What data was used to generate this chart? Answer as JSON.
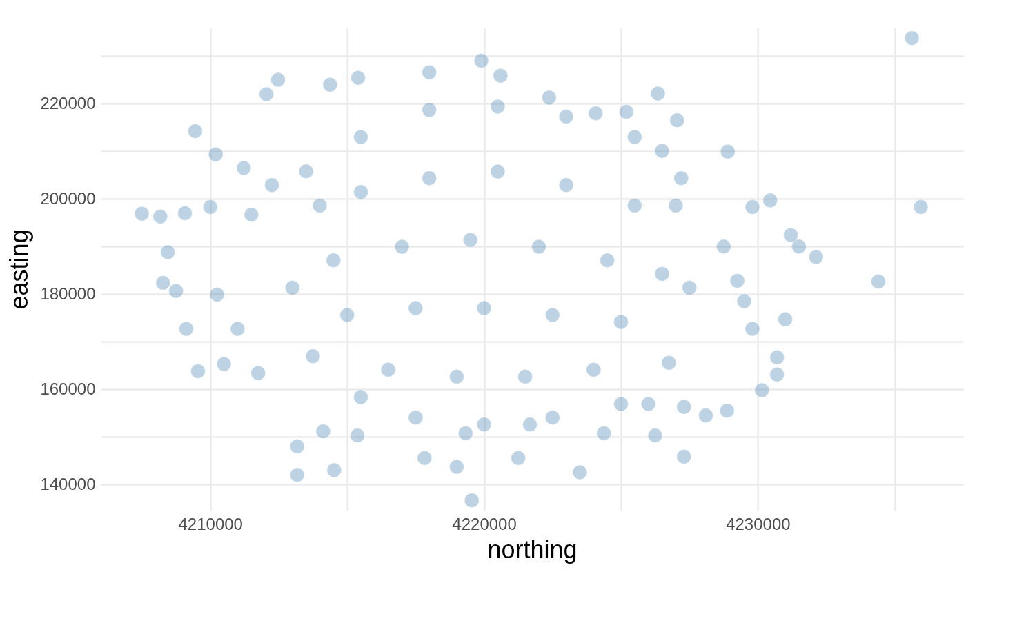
{
  "chart_data": {
    "type": "scatter",
    "xlabel": "northing",
    "ylabel": "easting",
    "grid": true,
    "marker": "circle",
    "xlim": [
      4206000,
      4237500
    ],
    "ylim": [
      134500,
      236000
    ],
    "xticks": [
      4210000,
      {
        "value": 4215000,
        "label": null
      },
      4220000,
      {
        "value": 4225000,
        "label": null
      },
      4230000,
      {
        "value": 4235000,
        "label": null
      }
    ],
    "yticks": [
      140000,
      {
        "value": 150000,
        "label": null
      },
      160000,
      {
        "value": 170000,
        "label": null
      },
      180000,
      {
        "value": 190000,
        "label": null
      },
      200000,
      {
        "value": 210000,
        "label": null
      },
      220000,
      {
        "value": 230000,
        "label": null
      }
    ],
    "series": [
      {
        "color": "#4682b4",
        "x": [
          4235625,
          4235950,
          4234400,
          4207500,
          4208175,
          4208450,
          4208275,
          4209450,
          4209550,
          4210500,
          4213175,
          4214525,
          4213175,
          4219000,
          4219550,
          4219900,
          4221250,
          4223500,
          4217825,
          4231200,
          4232125,
          4231500,
          4230450,
          4230150,
          4230700,
          4230700,
          4231000,
          4228900,
          4228875,
          4228100,
          4227300,
          4227300,
          4226350,
          4227050,
          4225200,
          4224075,
          4222375,
          4220600,
          4218000,
          4215400,
          4214375,
          4212475,
          4212050,
          4211225,
          4210200,
          4209075,
          4210000,
          4215375,
          4214125,
          4219325,
          4221675,
          4224375,
          4226250,
          4226000,
          4229800,
          4229500,
          4229800,
          4229250,
          4228750,
          4227200,
          4226500,
          4210250,
          4208750,
          4209125,
          4211000,
          4211750,
          4211500,
          4213500,
          4212250,
          4213000,
          4214000,
          4215500,
          4218000,
          4220500,
          4223000,
          4225500,
          4227000,
          4227500,
          4226750,
          4225000,
          4222500,
          4220000,
          4217500,
          4215500,
          4213750,
          4215500,
          4218000,
          4220500,
          4223000,
          4225500,
          4214500,
          4217000,
          4219500,
          4222000,
          4224500,
          4226500,
          4215000,
          4217500,
          4220000,
          4222500,
          4225000,
          4216500,
          4219000,
          4221500,
          4224000
        ],
        "values": [
          233800,
          198300,
          182650,
          196900,
          196300,
          188800,
          182350,
          214250,
          163800,
          165300,
          142000,
          143000,
          148000,
          143700,
          136650,
          229050,
          145550,
          142550,
          145550,
          192400,
          187800,
          190000,
          199700,
          159800,
          163100,
          166700,
          174700,
          209950,
          155500,
          154500,
          156300,
          145850,
          222150,
          216550,
          218300,
          218000,
          221300,
          225900,
          226600,
          225450,
          224000,
          225050,
          222000,
          206500,
          209350,
          197000,
          198300,
          150300,
          151150,
          150750,
          152600,
          150750,
          150300,
          156900,
          198300,
          178500,
          172700,
          182800,
          190000,
          204350,
          210100,
          179900,
          180650,
          172700,
          172700,
          163400,
          196700,
          205800,
          202900,
          181350,
          198600,
          213000,
          218700,
          219400,
          217300,
          213000,
          198600,
          181350,
          165550,
          156900,
          154050,
          152600,
          154050,
          158350,
          166950,
          201450,
          204350,
          205750,
          202900,
          198600,
          187100,
          189950,
          191400,
          189950,
          187100,
          184250,
          175600,
          177050,
          177050,
          175600,
          174150,
          164100,
          162650,
          162650,
          164100
        ]
      }
    ]
  }
}
